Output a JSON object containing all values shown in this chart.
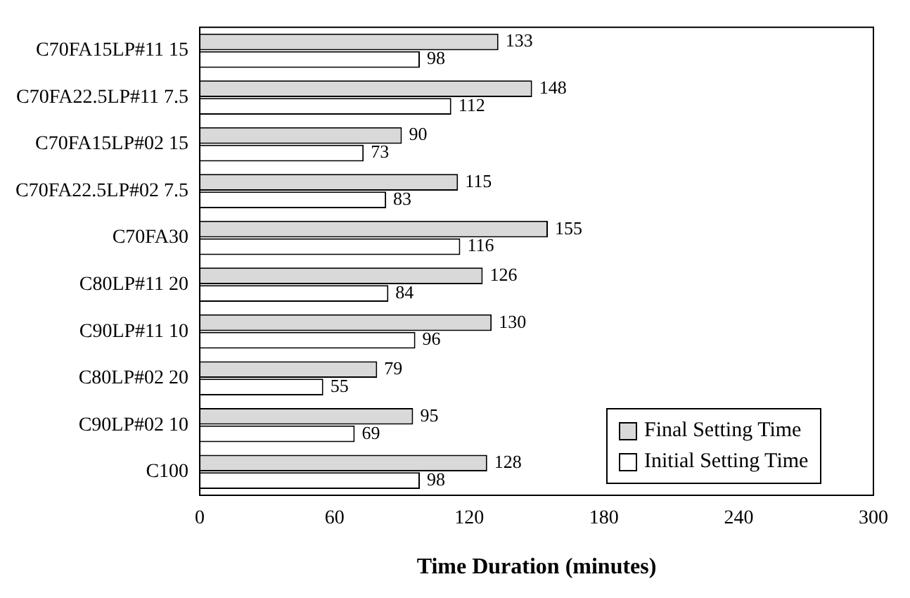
{
  "chart_data": {
    "type": "bar",
    "orientation": "horizontal",
    "xlabel": "Time Duration (minutes)",
    "categories": [
      "C70FA15LP#11 15",
      "C70FA22.5LP#11 7.5",
      "C70FA15LP#02 15",
      "C70FA22.5LP#02 7.5",
      "C70FA30",
      "C80LP#11 20",
      "C90LP#11 10",
      "C80LP#02 20",
      "C90LP#02 10",
      "C100"
    ],
    "series": [
      {
        "name": "Final Setting Time",
        "color": "#d9d9d9",
        "values": [
          133,
          148,
          90,
          115,
          155,
          126,
          130,
          79,
          95,
          128
        ]
      },
      {
        "name": "Initial Setting Time",
        "color": "#ffffff",
        "values": [
          98,
          112,
          73,
          83,
          116,
          84,
          96,
          55,
          69,
          98
        ]
      }
    ],
    "xlim": [
      0,
      300
    ],
    "xticks": [
      0,
      60,
      120,
      180,
      240,
      300
    ],
    "grid": false,
    "legend": "bottom right",
    "data_labels": true
  }
}
